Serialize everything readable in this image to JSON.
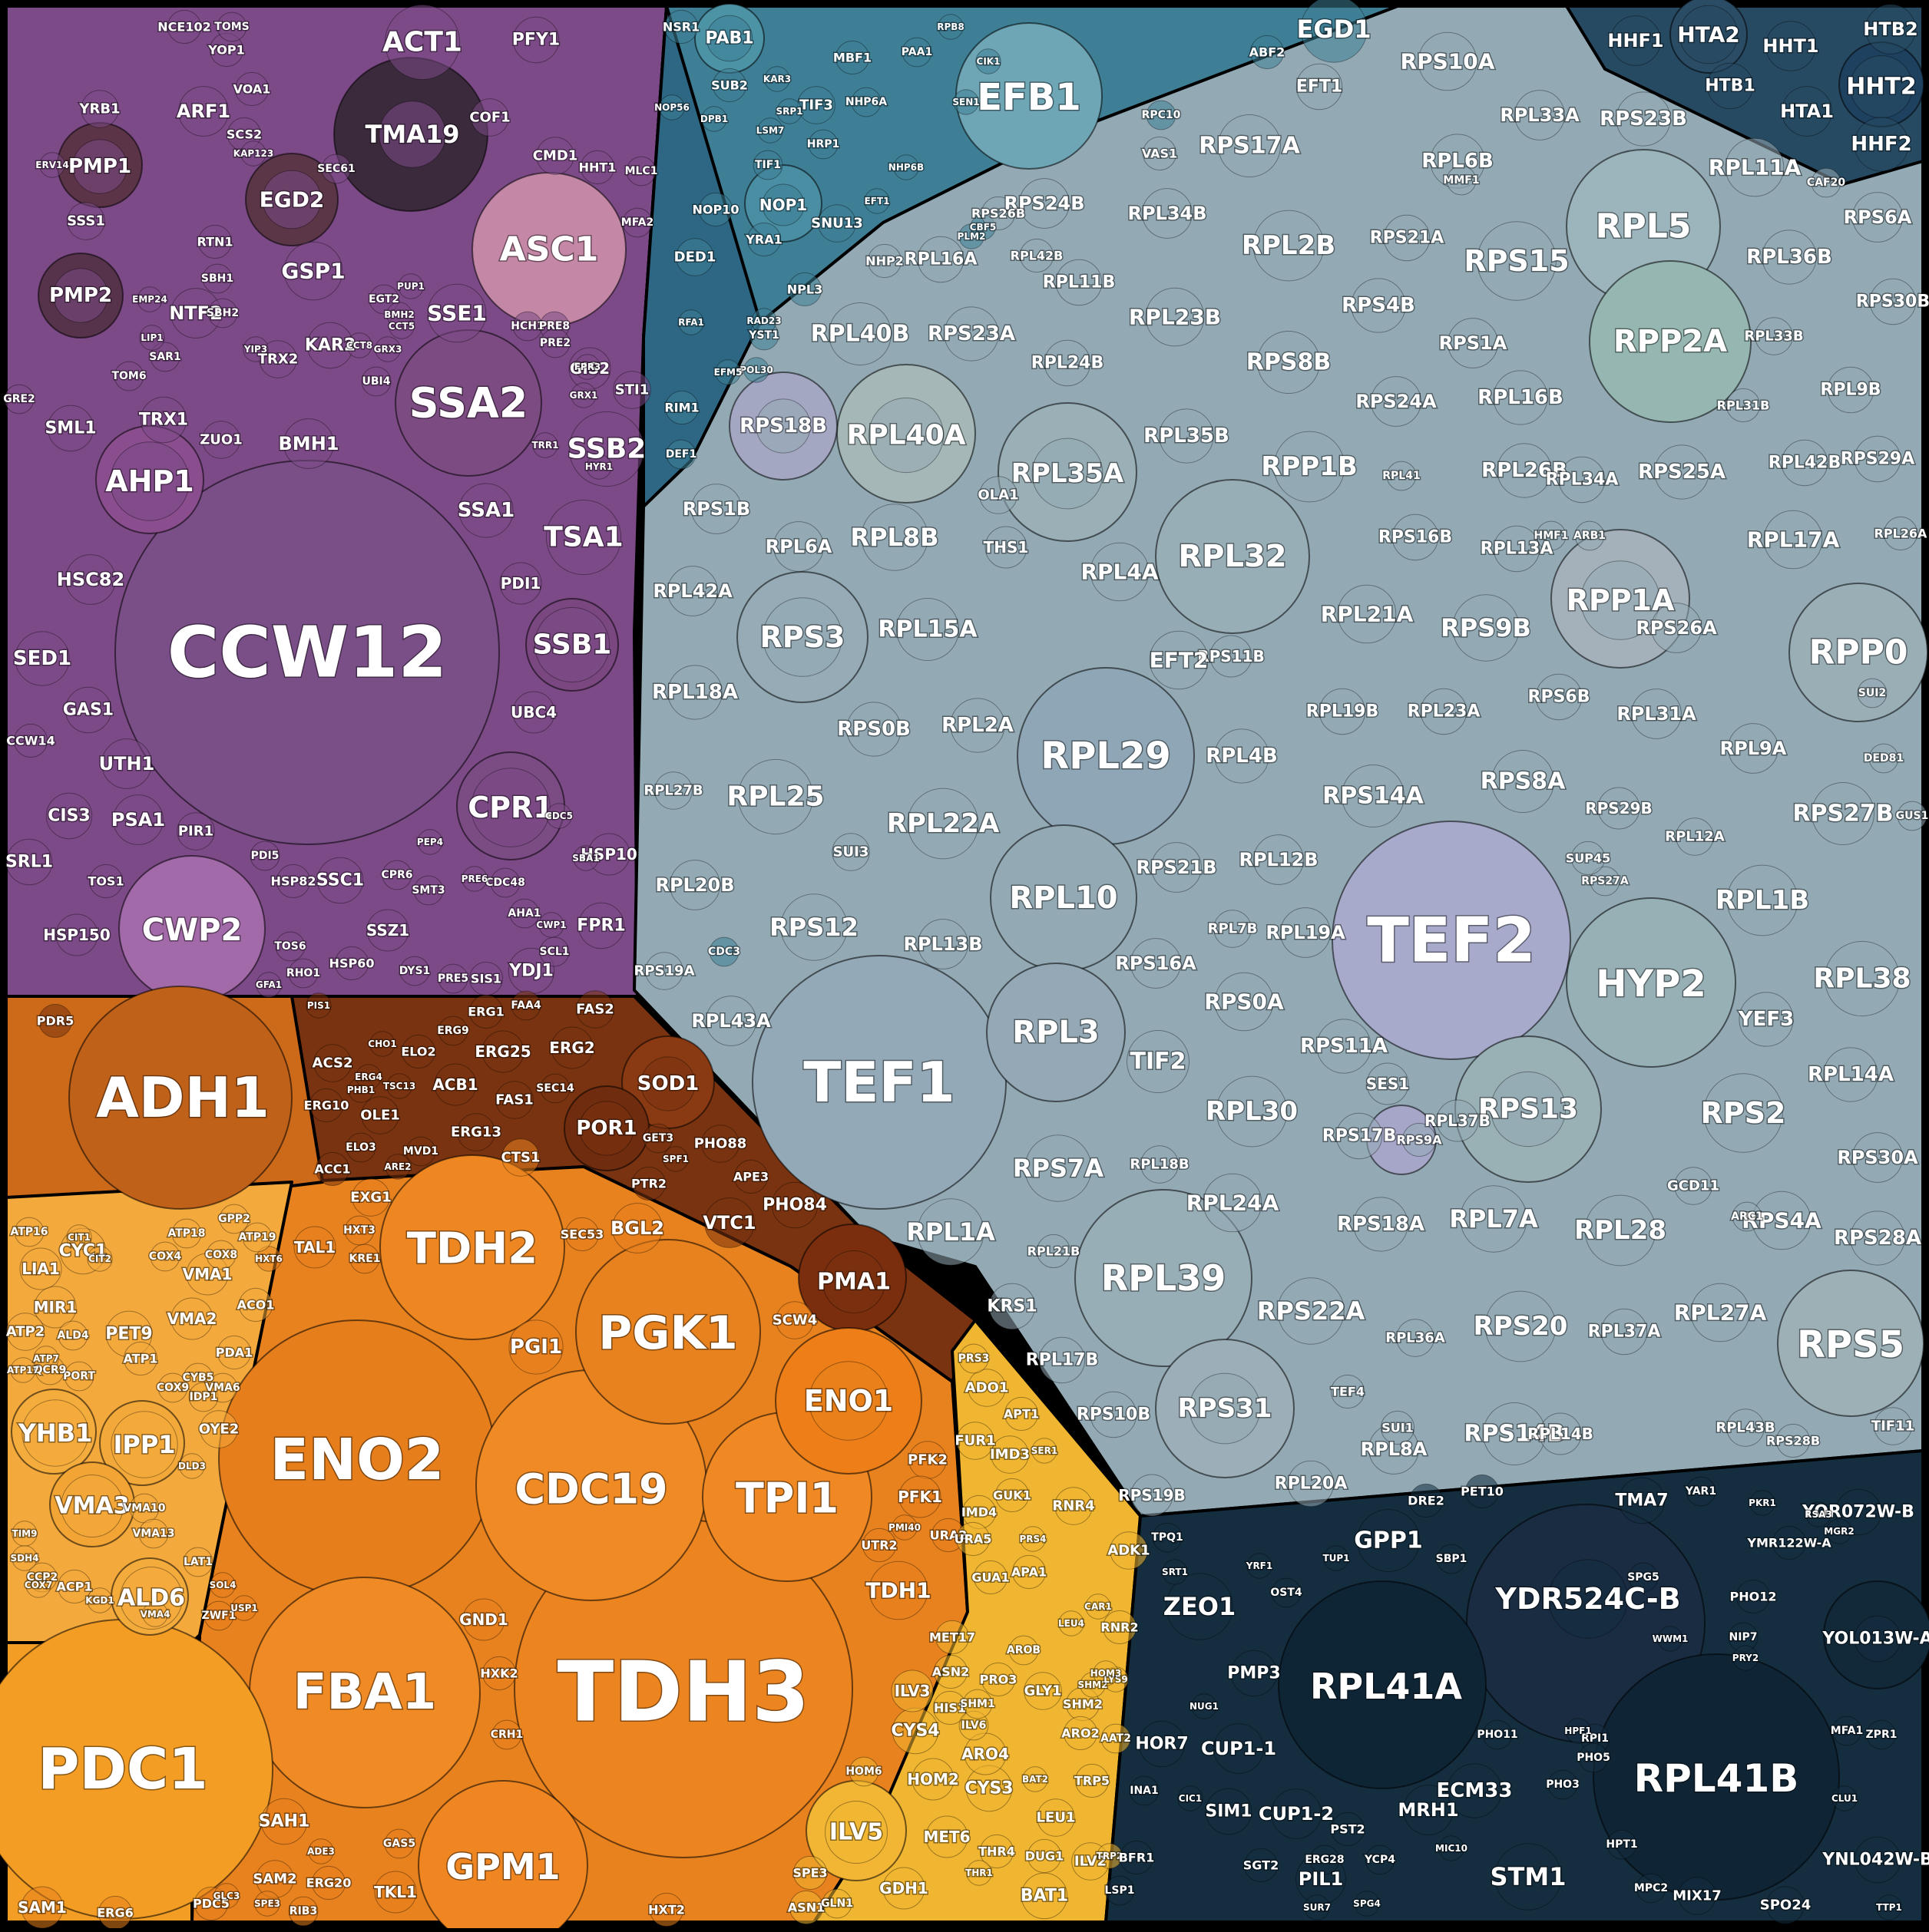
{
  "diagram": {
    "type": "voronoi-treemap",
    "groups": [
      {
        "name": "membrane-chaperone",
        "color": "#7c4a86",
        "labels": [
          "CCW12",
          "SSA2",
          "SSB2",
          "TSA1",
          "SSB1",
          "CPR1",
          "AHP1",
          "CWP2",
          "HSC82",
          "SED1",
          "GAS1",
          "UTH1",
          "CIS3",
          "PSA1",
          "PIR1",
          "SRL1",
          "HSP150",
          "SSE1",
          "KAR2",
          "TRX2",
          "BMH1",
          "TRX1",
          "ZUO1",
          "SSA1",
          "PDI1",
          "UBC4",
          "HSP10",
          "FPR1",
          "SSC1",
          "HSP82",
          "SSZ1",
          "HSP60",
          "YDJ1",
          "SIS1",
          "SML1",
          "GIS2",
          "STI1",
          "TOS1",
          "TOS6",
          "CCW14",
          "RHO1",
          "ACT1",
          "TMA19",
          "PFY1",
          "COF1",
          "ASC1",
          "CMD1",
          "HHT1",
          "MLC1",
          "MFA2",
          "ARF1",
          "PMP1",
          "YRB1",
          "EGD2",
          "GSP1",
          "PMP2",
          "NTF2",
          "SSS1",
          "YOP1",
          "NCE102",
          "TOMS",
          "VOA1",
          "SCS2",
          "RTN1",
          "SBH1",
          "SBH2",
          "SEC61",
          "TOM6",
          "SAR1",
          "LIP1",
          "YIP3",
          "GRE2",
          "ERV14",
          "EMP24",
          "KAP123",
          "EGT2",
          "PUP1",
          "CCT5",
          "CPR6",
          "SMT3",
          "CDC48",
          "AHA1",
          "CWP1",
          "SCL1",
          "DYS1",
          "PRE5",
          "GFA1",
          "SBA1",
          "CDC5",
          "HCH1",
          "PRE8",
          "PRE2",
          "FPR3",
          "GRX1",
          "GRX3",
          "CCT8",
          "BMH2",
          "UBI4",
          "TRR1",
          "HYR1",
          "PDI5",
          "PEP4",
          "PRE6",
          "TFP1"
        ]
      },
      {
        "name": "nuclear-translation",
        "color": "#3e7f96",
        "labels": [
          "EFB1",
          "EGD1",
          "PAB1",
          "NSR1",
          "SUB2",
          "NOP1",
          "SNU13",
          "YRA1",
          "TIF3",
          "DED1",
          "NOP10",
          "HRP1",
          "MBF1",
          "NOP56",
          "NHP6A",
          "PAA1",
          "TIF1",
          "EFT1",
          "RIM1",
          "DEF1",
          "DPB1",
          "SEN1",
          "LSM7",
          "SRP1",
          "NPL3",
          "RPC10",
          "ABF2",
          "NHP6B",
          "CBF5",
          "YST1",
          "RFA1",
          "RPB8",
          "CIK1",
          "KAR3",
          "RAD23",
          "POL30",
          "EFM5",
          "PLM2",
          "CDC3"
        ]
      },
      {
        "name": "ribosome",
        "color": "#93aab5",
        "labels": [
          "TEF2",
          "TEF1",
          "RPL29",
          "RPL10",
          "RPL3",
          "RPL32",
          "RPL39",
          "RPL5",
          "RPS15",
          "RPP2A",
          "RPP1A",
          "RPP1B",
          "RPP0",
          "RPS3",
          "RPL25",
          "RPL22A",
          "RPL40A",
          "RPL40B",
          "RPL35A",
          "RPL8B",
          "RPL15A",
          "HYP2",
          "RPS13",
          "RPS2",
          "RPS5",
          "RPS31",
          "RPS20",
          "RPL28",
          "RPL38",
          "RPL1B",
          "RPS27B",
          "RPL17A",
          "RPS26A",
          "RPL31A",
          "RPS9B",
          "RPL21A",
          "RPS22A",
          "RPS7A",
          "RPL1A",
          "RPL2B",
          "RPS10A",
          "RPS17A",
          "RPL33A",
          "RPS23B",
          "RPL11A",
          "RPL6B",
          "RPL36B",
          "RPS6A",
          "RPL2A",
          "RPS0B",
          "RPL13B",
          "RPS12",
          "RPL20B",
          "RPL43A",
          "RPS18B",
          "RPS1B",
          "RPL6A",
          "RPL42A",
          "RPL18A",
          "RPS8A",
          "RPS14A",
          "RPS21B",
          "RPL12B",
          "RPL19A",
          "RPS16A",
          "RPS0A",
          "RPS11A",
          "RPL30",
          "TIF2",
          "RPL24A",
          "RPS18A",
          "RPL7A",
          "RPS4A",
          "RPS28A",
          "RPL27A",
          "RPS30A",
          "RPL14A",
          "RPS4B",
          "RPL23B",
          "RPL34B",
          "RPS24B",
          "RPL11B",
          "RPL16A",
          "RPS23A",
          "RPL24B",
          "RPS8B",
          "RPS1A",
          "RPS24A",
          "RPL16B",
          "RPL35B",
          "RPL26B",
          "RPL4A",
          "RPS16B",
          "RPL13A",
          "RPL9A",
          "RPL12A",
          "RPL9B",
          "RPL42B",
          "RPS29A",
          "RPL26A",
          "RPL4B",
          "RPS11B",
          "RPL19B",
          "RPL23A",
          "RPS6B",
          "EFT2",
          "RPL2A_",
          "RPS17B",
          "RPL37B",
          "RPS25A",
          "RPL34A",
          "RPS21A",
          "RPS30B",
          "RPL33B",
          "RPL31B",
          "RPS29B",
          "YEF3",
          "TEF4",
          "RPS14B",
          "RPL37A",
          "RPL8A",
          "RPL20A",
          "RPS10B",
          "RPS19B",
          "RPL36A",
          "RPL14B",
          "RPL43B",
          "RPS28B",
          "TIF11",
          "RPS9A",
          "RPL27B",
          "RPS19A",
          "RPL7B",
          "SES1",
          "KRS1",
          "RPL21B",
          "RPL18B",
          "RPL17B",
          "EFT1",
          "RPS7B",
          "RPS3_",
          "RPL42B_",
          "RPS26B",
          "THS1",
          "OLA1",
          "NHP2",
          "VAS1",
          "MMF1",
          "CAF20",
          "SUI3",
          "SUI1",
          "SUI2",
          "GCD11",
          "ARC1",
          "DED81",
          "RPS27A",
          "SUP45",
          "GRS1",
          "RPL41_",
          "HMF1",
          "ARB1",
          "GUS1",
          "RPL22B"
        ]
      },
      {
        "name": "histones",
        "color": "#274a63",
        "labels": [
          "HHF1",
          "HTA2",
          "HHT1",
          "HTB2",
          "HTB1",
          "HHT2",
          "HTA1",
          "HHF2"
        ]
      },
      {
        "name": "metabolism-dark",
        "color": "#7a3310",
        "labels": [
          "ERG1",
          "FAA4",
          "FAS2",
          "ERG2",
          "ERG25",
          "ERG9",
          "ACS2",
          "ELO2",
          "ACB1",
          "FAS1",
          "ERG10",
          "OLE1",
          "ERG13",
          "ACC1",
          "ELO3",
          "MVD1",
          "SEC14",
          "SOD1",
          "POR1",
          "GET3",
          "PHO88",
          "SPF1",
          "PTR2",
          "APE3",
          "VTC1",
          "PHO84",
          "PMA1",
          "ARE2",
          "CHO1",
          "PHB1",
          "TSC13",
          "ERG4",
          "PIS1",
          "PDR5"
        ]
      },
      {
        "name": "glycolysis",
        "color": "#e8821e",
        "labels": [
          "TDH3",
          "ENO2",
          "TDH2",
          "PGK1",
          "CDC19",
          "TPI1",
          "FBA1",
          "GPM1",
          "ENO1",
          "TDH1",
          "PGI1",
          "SCW4",
          "BGL2",
          "TAL1",
          "EXG1",
          "CTS1",
          "HXT3",
          "KRE1",
          "GND1",
          "HXK2",
          "CRH1",
          "PDC1",
          "SAH1",
          "SAM2",
          "SAM1",
          "ADH1",
          "TKL1",
          "GAS5",
          "PDC5",
          "ERG20",
          "RIB3",
          "ADE3",
          "SPE3",
          "ERG6",
          "GLC3",
          "PFK2",
          "PFK1",
          "UTR2",
          "URA2",
          "PMI40",
          "SEC53",
          "HXT2",
          "HXT6",
          "ZWF1",
          "SOL4",
          "USP1"
        ]
      },
      {
        "name": "mitochondria",
        "color": "#f4a93c",
        "labels": [
          "YHB1",
          "IPP1",
          "VMA3",
          "ALD6",
          "PET9",
          "CYC1",
          "VMA1",
          "VMA2",
          "VMA4",
          "LIA1",
          "MIR1",
          "ATP2",
          "CIT1",
          "CIT2",
          "COX4",
          "ATP18",
          "ATP16",
          "COX8",
          "COX9",
          "CYB5",
          "ACO1",
          "PDA1",
          "IDP1",
          "ATP1",
          "PORT",
          "OYE2",
          "ACP1",
          "CCP2",
          "GPP2",
          "ALD4",
          "QCR9",
          "ATP7",
          "ATP17",
          "ATP19",
          "VMA6",
          "VMA10",
          "VMA13",
          "DLD3",
          "LAT1",
          "COX7",
          "TIM9",
          "SDH4",
          "KGD1"
        ]
      },
      {
        "name": "amino-acid",
        "color": "#f0b632",
        "labels": [
          "ILV5",
          "CYS4",
          "ILV3",
          "HOM2",
          "CYS3",
          "MET6",
          "ARO4",
          "GDH1",
          "BAT1",
          "ASN1",
          "GLN1",
          "THR4",
          "DUG1",
          "ILV2",
          "LEU1",
          "SPE3",
          "TRP5",
          "HIS1",
          "ILV6",
          "ASN2",
          "MET17",
          "PRO3",
          "AROB",
          "SHM1",
          "GLY1",
          "SHM2",
          "ARO2",
          "AAT2",
          "HOM6",
          "IMD3",
          "GUK1",
          "IMD4",
          "URA5",
          "GUA1",
          "APA1",
          "RNR4",
          "ADK1",
          "RNR2",
          "FUR1",
          "ADO1",
          "APT1",
          "SER1",
          "SHM2_",
          "LYS9",
          "HOM3",
          "LEU4",
          "PRS3",
          "PRS4",
          "BAT2",
          "THR1",
          "TRP2",
          "CAR1"
        ]
      },
      {
        "name": "other",
        "color": "#142e3f",
        "labels": [
          "RPL41A",
          "RPL41B",
          "YDR524C-B",
          "GPP1",
          "TMA7",
          "YOR072W-B",
          "YMR122W-A",
          "ZEO1",
          "PMP3",
          "YOL013W-A",
          "HOR7",
          "CUP1-1",
          "CUP1-2",
          "SIM1",
          "MRH1",
          "ECM33",
          "STM1",
          "PIL1",
          "PHO12",
          "SPO24",
          "MIX17",
          "YNL042W-B",
          "LSP1",
          "INA1",
          "BFR1",
          "SGT2",
          "PST2",
          "MPC2",
          "HPT1",
          "RPI1",
          "ERG28",
          "YCP4",
          "MIC10",
          "SBP1",
          "DRE2",
          "PET10",
          "HPF1",
          "PHO3",
          "PHO5",
          "PHO11",
          "CIC1",
          "NUG1",
          "YRF1",
          "OST4",
          "TUP1",
          "SUR7",
          "SPG4",
          "SPG5",
          "WWM1",
          "NIP7",
          "PRY2",
          "TPQ1",
          "SRT1",
          "MFA1",
          "ZPR1",
          "CLU1",
          "YAR1",
          "PKR1",
          "RSA3",
          "MGR2",
          "TTP1"
        ]
      }
    ]
  }
}
